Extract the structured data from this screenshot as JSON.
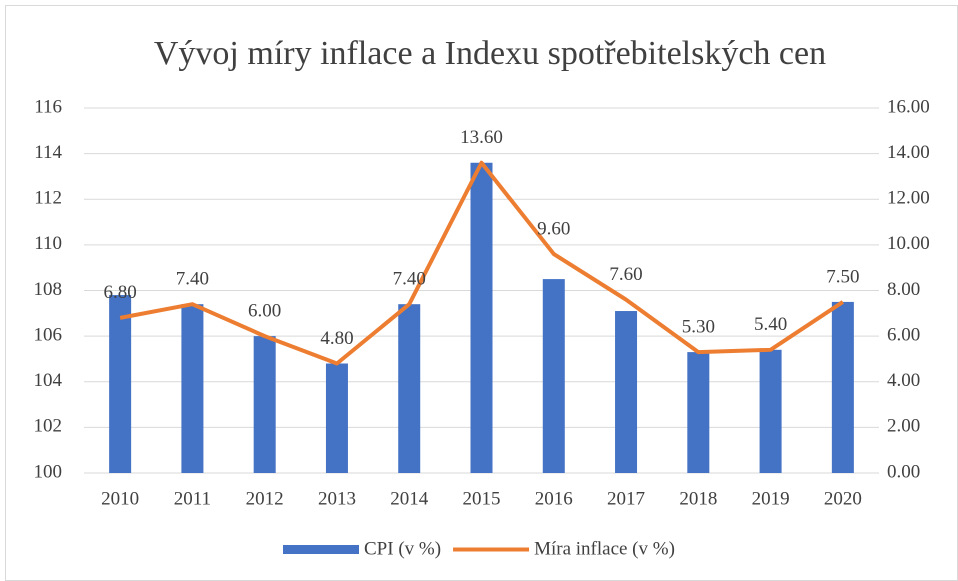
{
  "chart_data": {
    "type": "bar-line",
    "title": "Vývoj míry inflace a Indexu spotřebitelských cen",
    "categories": [
      "2010",
      "2011",
      "2012",
      "2013",
      "2014",
      "2015",
      "2016",
      "2017",
      "2018",
      "2019",
      "2020"
    ],
    "series": [
      {
        "name": "CPI (v %)",
        "color": "#4472c4",
        "type": "bar",
        "values": [
          107.8,
          107.4,
          106.0,
          104.8,
          107.4,
          113.6,
          108.5,
          107.1,
          105.3,
          105.4,
          107.5
        ]
      },
      {
        "name": "Míra inflace (v %)",
        "color": "#ed7d31",
        "type": "line",
        "axis": "y2",
        "values": [
          6.8,
          7.4,
          6.0,
          4.8,
          7.4,
          13.6,
          9.6,
          7.6,
          5.3,
          5.4,
          7.5
        ],
        "value_labels": [
          "6.80",
          "7.40",
          "6.00",
          "4.80",
          "7.40",
          "13.60",
          "9.60",
          "7.60",
          "5.30",
          "5.40",
          "7.50"
        ]
      }
    ],
    "ylim": [
      100,
      116
    ],
    "yticks": [
      100,
      102,
      104,
      106,
      108,
      110,
      112,
      114,
      116
    ],
    "y2lim": [
      0,
      16
    ],
    "y2ticks": [
      {
        "value": 0,
        "label": "0.00"
      },
      {
        "value": 2,
        "label": "2.00"
      },
      {
        "value": 4,
        "label": "4.00"
      },
      {
        "value": 6,
        "label": "6.00"
      },
      {
        "value": 8,
        "label": "8.00"
      },
      {
        "value": 10,
        "label": "10.00"
      },
      {
        "value": 12,
        "label": "12.00"
      },
      {
        "value": 14,
        "label": "14.00"
      },
      {
        "value": 16,
        "label": "16.00"
      }
    ],
    "grid": true,
    "legend": "bottom"
  }
}
